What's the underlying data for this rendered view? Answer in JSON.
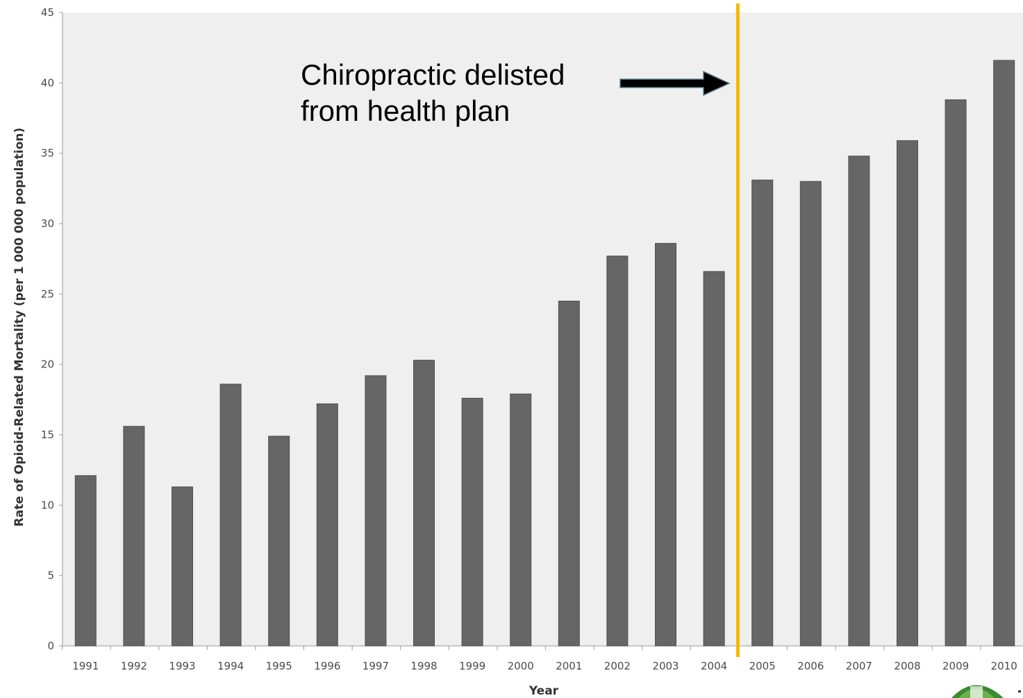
{
  "chart_data": {
    "type": "bar",
    "xlabel": "Year",
    "ylabel": "Rate of Opioid-Related Mortality  (per 1 000 000 population)",
    "ylim": [
      0,
      45
    ],
    "yticks": [
      0,
      5,
      10,
      15,
      20,
      25,
      30,
      35,
      40,
      45
    ],
    "categories": [
      "1991",
      "1992",
      "1993",
      "1994",
      "1995",
      "1996",
      "1997",
      "1998",
      "1999",
      "2000",
      "2001",
      "2002",
      "2003",
      "2004",
      "2005",
      "2006",
      "2007",
      "2008",
      "2009",
      "2010"
    ],
    "values": [
      12.1,
      15.6,
      11.3,
      18.6,
      14.9,
      17.2,
      19.2,
      20.3,
      17.6,
      17.9,
      24.5,
      27.7,
      28.6,
      26.6,
      33.1,
      33.0,
      34.8,
      35.9,
      38.8,
      41.6
    ],
    "grid": false,
    "bar_color": "#666666",
    "plot_background": "#efefef",
    "annotation": {
      "lines": [
        "Chiropractic delisted",
        "from health plan"
      ],
      "marker_after_category": "2004",
      "marker_color": "#f5b800",
      "arrow_color": "#000000"
    }
  },
  "logo": {
    "name": "university-seal-logo",
    "color": "#3a8a2e"
  }
}
